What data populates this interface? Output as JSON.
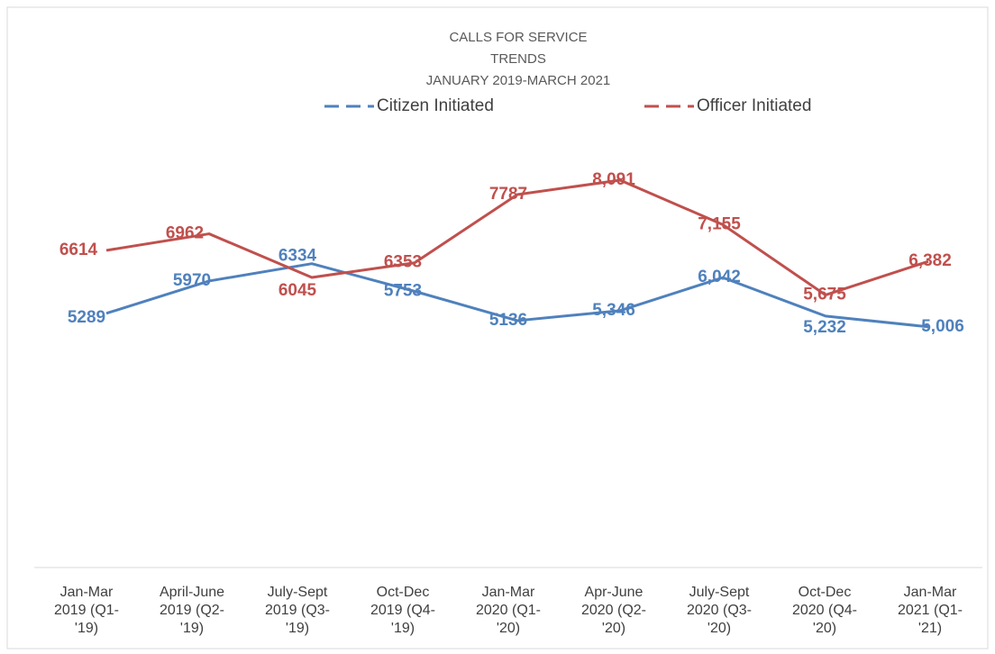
{
  "chart_data": {
    "type": "line",
    "title": [
      "CALLS FOR SERVICE",
      "TRENDS",
      "JANUARY 2019-MARCH 2021"
    ],
    "categories": [
      "Jan-Mar 2019 (Q1-'19)",
      "April-June 2019 (Q2-'19)",
      "July-Sept 2019 (Q3-'19)",
      "Oct-Dec 2019 (Q4-'19)",
      "Jan-Mar 2020 (Q1-'20)",
      "Apr-June 2020 (Q2-'20)",
      "July-Sept 2020 (Q3-'20)",
      "Oct-Dec 2020 (Q4-'20)",
      "Jan-Mar 2021 (Q1-'21)"
    ],
    "series": [
      {
        "name": "Citizen Initiated",
        "color": "#4f81bd",
        "values": [
          5289,
          5970,
          6334,
          5753,
          5136,
          5346,
          6042,
          5232,
          5006
        ],
        "value_labels": [
          "5289",
          "5970",
          "6334",
          "5753",
          "5136",
          "5,346",
          "6,042",
          "5,232",
          "5,006"
        ]
      },
      {
        "name": "Officer Initiated",
        "color": "#c0504d",
        "values": [
          6614,
          6962,
          6045,
          6353,
          7787,
          8091,
          7155,
          5675,
          6382
        ],
        "value_labels": [
          "6614",
          "6962",
          "6045",
          "6353",
          "7787",
          "8,091",
          "7,155",
          "5,675",
          "6,382"
        ]
      }
    ],
    "ylim": [
      0,
      9000
    ],
    "legend": "top"
  }
}
